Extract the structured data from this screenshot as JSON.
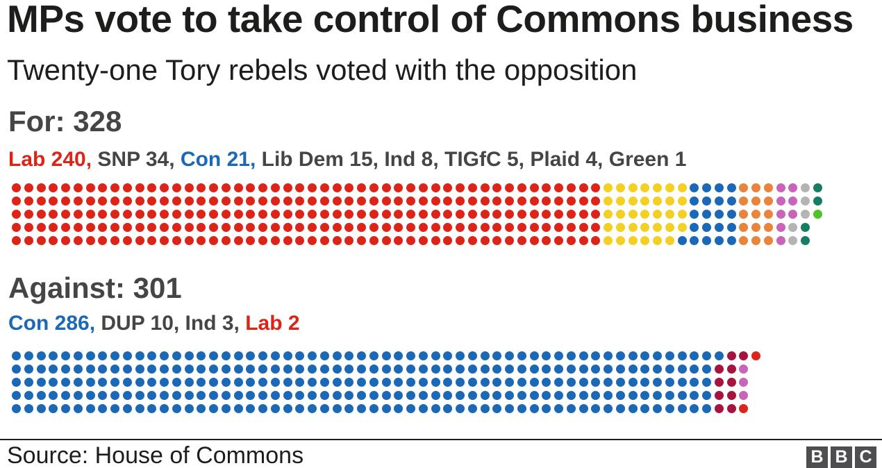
{
  "title": "MPs vote to take control of Commons business",
  "subtitle": "Twenty-one Tory rebels voted with the opposition",
  "footer": {
    "source": "Source: House of Commons",
    "logo_letters": [
      "B",
      "B",
      "C"
    ]
  },
  "palette": {
    "ink": "#1d1d1b",
    "heading_gray": "#454545",
    "lab": "#dc2418",
    "snp": "#f4d024",
    "con": "#1b68b6",
    "lib_dem": "#e8843c",
    "ind": "#c865bb",
    "tigfc": "#b4b4b6",
    "plaid": "#177e66",
    "green": "#4ec428",
    "dup": "#a8123e"
  },
  "chart_data": [
    {
      "type": "waffle",
      "title": "For: 328",
      "total": 328,
      "rows": 5,
      "columns": 66,
      "fill_order": "column-major-top-to-bottom",
      "summary_segments": [
        {
          "text": "Lab 240,",
          "color": "#dc2418"
        },
        {
          "text": " SNP 34, ",
          "color": "#454545"
        },
        {
          "text": "Con 21,",
          "color": "#1b68b6"
        },
        {
          "text": " Lib Dem 15, Ind 8, TIGfC 5, Plaid 4, Green 1",
          "color": "#454545"
        }
      ],
      "series": [
        {
          "name": "Lab",
          "value": 240,
          "color": "#dc2418"
        },
        {
          "name": "SNP",
          "value": 34,
          "color": "#f4d024"
        },
        {
          "name": "Con",
          "value": 21,
          "color": "#1b68b6"
        },
        {
          "name": "Lib Dem",
          "value": 15,
          "color": "#e8843c"
        },
        {
          "name": "Ind",
          "value": 8,
          "color": "#c865bb"
        },
        {
          "name": "TIGfC",
          "value": 5,
          "color": "#b4b4b6"
        },
        {
          "name": "Plaid",
          "value": 4,
          "color": "#177e66"
        },
        {
          "name": "Green",
          "value": 1,
          "color": "#4ec428"
        }
      ]
    },
    {
      "type": "waffle",
      "title": "Against: 301",
      "total": 301,
      "rows": 5,
      "columns": 61,
      "fill_order": "column-major-top-to-bottom",
      "summary_segments": [
        {
          "text": "Con 286,",
          "color": "#1b68b6"
        },
        {
          "text": " DUP 10, Ind 3, ",
          "color": "#454545"
        },
        {
          "text": "Lab 2",
          "color": "#dc2418"
        }
      ],
      "series": [
        {
          "name": "Con",
          "value": 286,
          "color": "#1b68b6"
        },
        {
          "name": "DUP",
          "value": 10,
          "color": "#a8123e"
        },
        {
          "name": "Ind",
          "value": 3,
          "color": "#c865bb"
        },
        {
          "name": "Lab",
          "value": 2,
          "color": "#dc2418"
        }
      ]
    }
  ],
  "layout": {
    "dot_size": 13,
    "pitch_x": 17.75,
    "pitch_y": 19
  }
}
